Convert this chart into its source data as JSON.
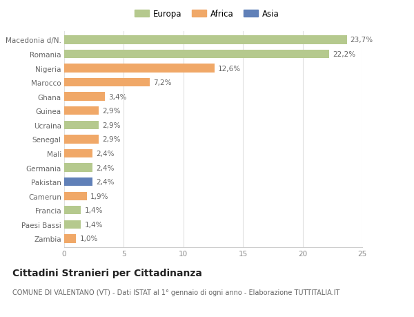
{
  "categories": [
    "Macedonia d/N.",
    "Romania",
    "Nigeria",
    "Marocco",
    "Ghana",
    "Guinea",
    "Ucraina",
    "Senegal",
    "Mali",
    "Germania",
    "Pakistan",
    "Camerun",
    "Francia",
    "Paesi Bassi",
    "Zambia"
  ],
  "values": [
    23.7,
    22.2,
    12.6,
    7.2,
    3.4,
    2.9,
    2.9,
    2.9,
    2.4,
    2.4,
    2.4,
    1.9,
    1.4,
    1.4,
    1.0
  ],
  "labels": [
    "23,7%",
    "22,2%",
    "12,6%",
    "7,2%",
    "3,4%",
    "2,9%",
    "2,9%",
    "2,9%",
    "2,4%",
    "2,4%",
    "2,4%",
    "1,9%",
    "1,4%",
    "1,4%",
    "1,0%"
  ],
  "colors": [
    "#b5c98e",
    "#b5c98e",
    "#f0a868",
    "#f0a868",
    "#f0a868",
    "#f0a868",
    "#b5c98e",
    "#f0a868",
    "#f0a868",
    "#b5c98e",
    "#6080b8",
    "#f0a868",
    "#b5c98e",
    "#b5c98e",
    "#f0a868"
  ],
  "legend_labels": [
    "Europa",
    "Africa",
    "Asia"
  ],
  "legend_colors": [
    "#b5c98e",
    "#f0a868",
    "#6080b8"
  ],
  "xlim": [
    0,
    25
  ],
  "xticks": [
    0,
    5,
    10,
    15,
    20,
    25
  ],
  "title": "Cittadini Stranieri per Cittadinanza",
  "subtitle": "COMUNE DI VALENTANO (VT) - Dati ISTAT al 1° gennaio di ogni anno - Elaborazione TUTTITALIA.IT",
  "bg_color": "#ffffff",
  "grid_color": "#e0e0e0",
  "bar_height": 0.6,
  "label_fontsize": 7.5,
  "tick_fontsize": 7.5,
  "title_fontsize": 10,
  "subtitle_fontsize": 7.0,
  "legend_fontsize": 8.5
}
